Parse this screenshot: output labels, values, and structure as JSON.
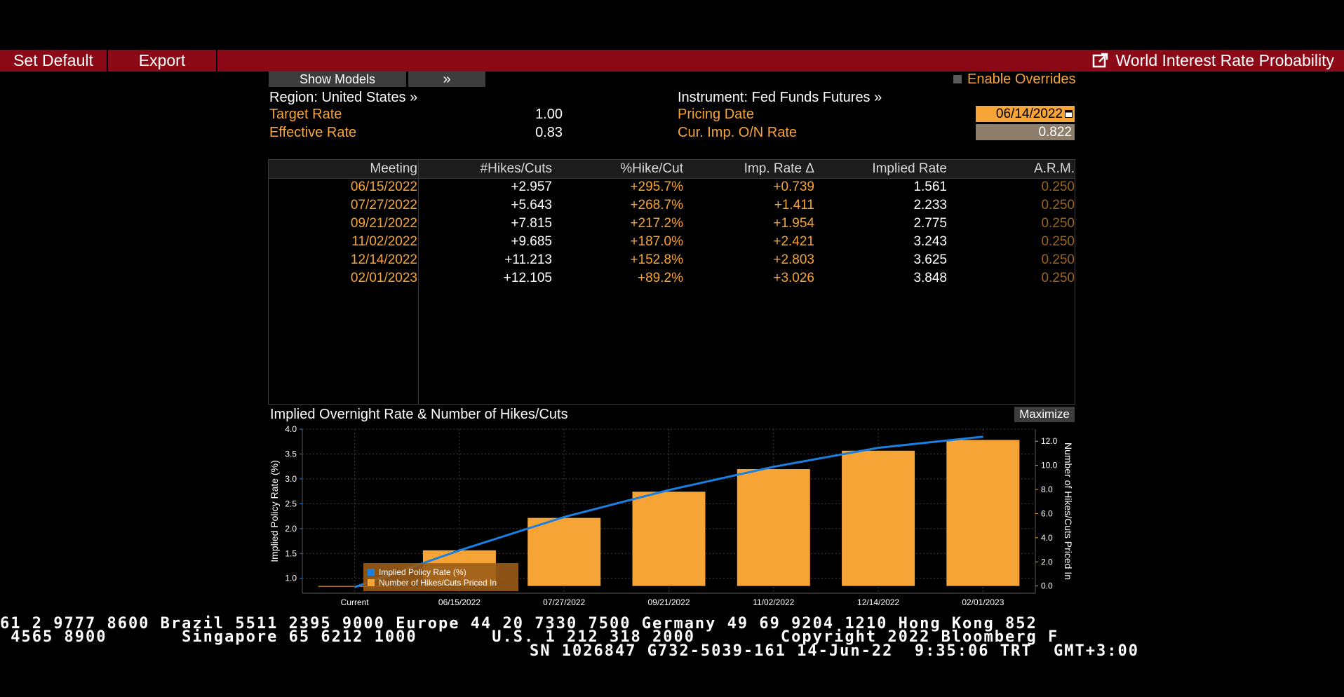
{
  "menu": {
    "set_default": "Set Default",
    "export": "Export",
    "title": "World Interest Rate Probability"
  },
  "models": {
    "show_models": "Show Models",
    "expand": "»",
    "enable_overrides": "Enable Overrides"
  },
  "info": {
    "region": "Region: United States »",
    "instrument": "Instrument: Fed Funds Futures »",
    "target_rate_label": "Target Rate",
    "target_rate_value": "1.00",
    "effective_rate_label": "Effective Rate",
    "effective_rate_value": "0.83",
    "pricing_date_label": "Pricing Date",
    "pricing_date_value": "06/14/2022",
    "cur_imp_label": "Cur. Imp. O/N Rate",
    "cur_imp_value": "0.822"
  },
  "table": {
    "headers": [
      "Meeting",
      "#Hikes/Cuts",
      "%Hike/Cut",
      "Imp. Rate Δ",
      "Implied Rate",
      "A.R.M."
    ],
    "rows": [
      [
        "06/15/2022",
        "+2.957",
        "+295.7%",
        "+0.739",
        "1.561",
        "0.250"
      ],
      [
        "07/27/2022",
        "+5.643",
        "+268.7%",
        "+1.411",
        "2.233",
        "0.250"
      ],
      [
        "09/21/2022",
        "+7.815",
        "+217.2%",
        "+1.954",
        "2.775",
        "0.250"
      ],
      [
        "11/02/2022",
        "+9.685",
        "+187.0%",
        "+2.421",
        "3.243",
        "0.250"
      ],
      [
        "12/14/2022",
        "+11.213",
        "+152.8%",
        "+2.803",
        "3.625",
        "0.250"
      ],
      [
        "02/01/2023",
        "+12.105",
        "+89.2%",
        "+3.026",
        "3.848",
        "0.250"
      ]
    ]
  },
  "chart_panel": {
    "title": "Implied Overnight Rate & Number of Hikes/Cuts",
    "maximize": "Maximize"
  },
  "chart_data": {
    "type": "bar",
    "categories": [
      "Current",
      "06/15/2022",
      "07/27/2022",
      "09/21/2022",
      "11/02/2022",
      "12/14/2022",
      "02/01/2023"
    ],
    "series": [
      {
        "name": "Implied Policy Rate (%)",
        "type": "line",
        "axis": "left",
        "color": "#1a7fe0",
        "values": [
          0.822,
          1.561,
          2.233,
          2.775,
          3.243,
          3.625,
          3.848
        ]
      },
      {
        "name": "Number of Hikes/Cuts Priced In",
        "type": "bar",
        "axis": "right",
        "color": "#f7a436",
        "values": [
          0,
          2.957,
          5.643,
          7.815,
          9.685,
          11.213,
          12.105
        ]
      }
    ],
    "ylabel": "Implied Policy Rate (%)",
    "y2label": "Number of Hikes/Cuts Priced In",
    "yticks": [
      "1.0",
      "1.5",
      "2.0",
      "2.5",
      "3.0",
      "3.5",
      "4.0"
    ],
    "y2ticks": [
      "0.0",
      "2.0",
      "4.0",
      "6.0",
      "8.0",
      "10.0",
      "12.0"
    ],
    "ylim": [
      0.7,
      4.0
    ],
    "y2lim": [
      -0.6,
      13.0
    ],
    "grid": true,
    "legend_position": "bottom-left"
  },
  "ticker": {
    "line1": "61 2 9777 8600 Brazil 5511 2395 9000 Europe 44 20 7330 7500 Germany 49 69 9204 1210 Hong Kong 852",
    "line2": " 4565 8900       Singapore 65 6212 1000       U.S. 1 212 318 2000        Copyright 2022 Bloomberg F",
    "line3": "SN 1026847 G732-5039-161 14-Jun-22  9:35:06 TRT  GMT+3:00"
  }
}
